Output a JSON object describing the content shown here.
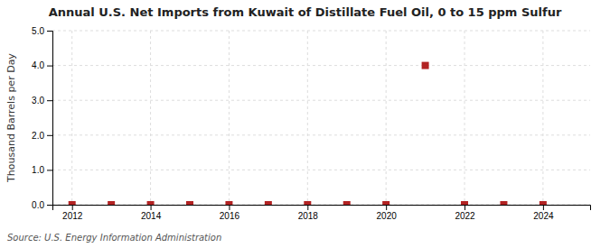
{
  "chart_data": {
    "type": "scatter",
    "title": "Annual U.S. Net Imports from Kuwait of Distillate Fuel Oil, 0 to 15 ppm Sulfur",
    "ylabel": "Thousand Barrels per Day",
    "annotations": [
      "Source: U.S. Energy Information Administration"
    ],
    "x": [
      2012,
      2013,
      2014,
      2015,
      2016,
      2017,
      2018,
      2019,
      2020,
      2021,
      2022,
      2023,
      2024
    ],
    "values": [
      0,
      0,
      0,
      0,
      0,
      0,
      0,
      0,
      0,
      4.0,
      0,
      0,
      0
    ],
    "color": "#b22222",
    "marker": "square",
    "xlim": [
      2011.5,
      2025.2
    ],
    "xticks": [
      2012,
      2014,
      2016,
      2018,
      2020,
      2022,
      2024
    ],
    "ylim": [
      0,
      5.0
    ],
    "yticks": [
      {
        "value": 0.0,
        "label": "0.0"
      },
      {
        "value": 1.0,
        "label": "1.0"
      },
      {
        "value": 2.0,
        "label": "2.0"
      },
      {
        "value": 3.0,
        "label": "3.0"
      },
      {
        "value": 4.0,
        "label": "4.0"
      },
      {
        "value": 5.0,
        "label": "5.0"
      }
    ],
    "grid": true
  }
}
